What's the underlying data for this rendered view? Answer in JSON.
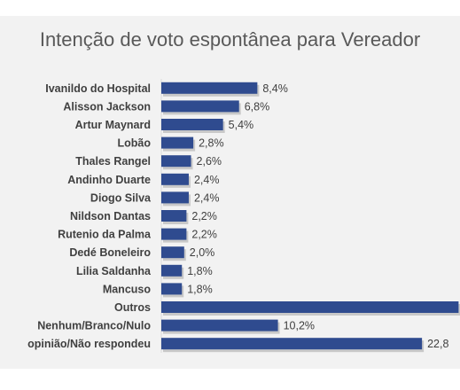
{
  "chart_data": {
    "type": "bar",
    "orientation": "horizontal",
    "title": "Intenção de voto espontânea para Vereador",
    "xlabel": "",
    "ylabel": "",
    "grid": false,
    "legend": "none",
    "colors": {
      "bar": "#2f4b8f",
      "background": "#f2f2f2",
      "text": "#404040",
      "title": "#595959",
      "shadow": "#a6a6a6"
    },
    "categories": [
      "Ivanildo do Hospital",
      "Alisson Jackson",
      "Artur Maynard",
      "Lobão",
      "Thales Rangel",
      "Andinho Duarte",
      "Diogo Silva",
      "Nildson Dantas",
      "Rutenio da Palma",
      "Dedé Boneleiro",
      "Lilia Saldanha",
      "Mancuso",
      "Outros",
      "Nenhum/Branco/Nulo",
      "opinião/Não respondeu"
    ],
    "values": [
      8.4,
      6.8,
      5.4,
      2.8,
      2.6,
      2.4,
      2.4,
      2.2,
      2.2,
      2.0,
      1.8,
      1.8,
      26.0,
      10.2,
      22.8
    ],
    "labels": [
      "8,4%",
      "6,8%",
      "5,4%",
      "2,8%",
      "2,6%",
      "2,4%",
      "2,4%",
      "2,2%",
      "2,2%",
      "2,0%",
      "1,8%",
      "1,8%",
      "",
      "10,2%",
      "22,8"
    ]
  }
}
